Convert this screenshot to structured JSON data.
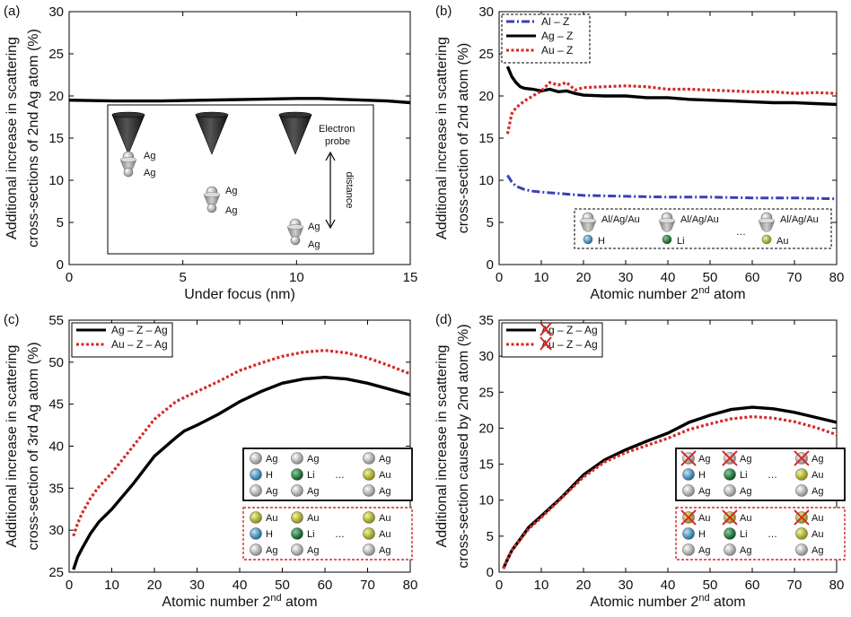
{
  "chart_data": [
    {
      "panel": "(a)",
      "type": "line",
      "xlabel": "Under focus (nm)",
      "ylabel_lines": [
        "Additional increase in scattering",
        "cross-sections of 2nd Ag atom (%)"
      ],
      "xlim": [
        0,
        15
      ],
      "ylim": [
        0,
        30
      ],
      "xticks": [
        0,
        5,
        10,
        15
      ],
      "yticks": [
        0,
        5,
        10,
        15,
        20,
        25,
        30
      ],
      "series": [
        {
          "color": "#000000",
          "dash": "solid",
          "x": [
            0,
            2,
            4,
            6,
            8,
            10,
            11,
            12,
            13,
            14,
            15
          ],
          "y": [
            19.5,
            19.4,
            19.4,
            19.5,
            19.6,
            19.7,
            19.7,
            19.6,
            19.5,
            19.4,
            19.2
          ]
        }
      ],
      "inset": {
        "probe_label": [
          "Electron",
          "probe"
        ],
        "distance_label": "distance",
        "atom_label": "Ag"
      }
    },
    {
      "panel": "(b)",
      "type": "line",
      "xlabel": "Atomic number 2",
      "xlabel_sup": "nd",
      "xlabel_tail": " atom",
      "ylabel_lines": [
        "Additional increase in scattering",
        "cross-section of 2nd atom (%)"
      ],
      "xlim": [
        0,
        80
      ],
      "ylim": [
        0,
        30
      ],
      "xticks": [
        0,
        10,
        20,
        30,
        40,
        50,
        60,
        70,
        80
      ],
      "yticks": [
        0,
        5,
        10,
        15,
        20,
        25,
        30
      ],
      "series": [
        {
          "name": "Al – Z",
          "color": "#3b3fb4",
          "dash": "dashdot",
          "x": [
            2,
            3,
            4,
            6,
            8,
            10,
            15,
            20,
            30,
            40,
            50,
            60,
            70,
            80
          ],
          "y": [
            10.6,
            9.8,
            9.3,
            8.9,
            8.7,
            8.6,
            8.4,
            8.2,
            8.1,
            8.0,
            8.0,
            7.9,
            7.9,
            7.8
          ]
        },
        {
          "name": "Ag – Z",
          "color": "#000000",
          "dash": "solid",
          "x": [
            2,
            3,
            4,
            5,
            6,
            8,
            10,
            12,
            14,
            16,
            18,
            20,
            25,
            30,
            35,
            40,
            45,
            50,
            55,
            60,
            65,
            70,
            75,
            80
          ],
          "y": [
            23.5,
            22.3,
            21.6,
            21.1,
            20.9,
            20.8,
            20.6,
            20.8,
            20.5,
            20.6,
            20.3,
            20.1,
            20.0,
            20.0,
            19.8,
            19.8,
            19.6,
            19.5,
            19.4,
            19.3,
            19.2,
            19.2,
            19.1,
            19.0
          ]
        },
        {
          "name": "Au – Z",
          "color": "#d42a2a",
          "dash": "dotted",
          "x": [
            2,
            3,
            4,
            5,
            6,
            8,
            10,
            12,
            14,
            16,
            18,
            20,
            25,
            30,
            35,
            40,
            45,
            50,
            55,
            60,
            65,
            70,
            75,
            80
          ],
          "y": [
            15.5,
            17.9,
            18.6,
            19.0,
            19.4,
            20.0,
            20.6,
            21.6,
            21.3,
            21.6,
            20.7,
            21.0,
            21.1,
            21.2,
            21.1,
            20.8,
            20.8,
            20.7,
            20.6,
            20.5,
            20.5,
            20.3,
            20.4,
            20.3
          ]
        }
      ],
      "inset": {
        "top_label": "Al/Ag/Au",
        "bottom_labels": [
          "H",
          "Li",
          "Au"
        ],
        "ellipsis": "…"
      }
    },
    {
      "panel": "(c)",
      "type": "line",
      "xlabel": "Atomic number 2",
      "xlabel_sup": "nd",
      "xlabel_tail": " atom",
      "ylabel_lines": [
        "Additional increase in scattering",
        "cross-section of 3rd Ag atom (%)"
      ],
      "xlim": [
        0,
        80
      ],
      "ylim": [
        25,
        55
      ],
      "xticks": [
        0,
        10,
        20,
        30,
        40,
        50,
        60,
        70,
        80
      ],
      "yticks": [
        25,
        30,
        35,
        40,
        45,
        50,
        55
      ],
      "series": [
        {
          "name": "Ag – Z – Ag",
          "color": "#000000",
          "dash": "solid",
          "x": [
            1,
            2,
            3,
            5,
            7,
            10,
            15,
            20,
            25,
            27,
            30,
            35,
            40,
            45,
            50,
            55,
            60,
            65,
            70,
            75,
            80
          ],
          "y": [
            25.3,
            26.8,
            27.8,
            29.6,
            31.0,
            32.5,
            35.5,
            38.8,
            41.0,
            41.8,
            42.5,
            43.8,
            45.3,
            46.5,
            47.5,
            48.0,
            48.2,
            48.0,
            47.5,
            46.8,
            46.1
          ]
        },
        {
          "name": "Au – Z – Ag",
          "color": "#d42a2a",
          "dash": "dotted",
          "x": [
            1,
            2,
            3,
            5,
            7,
            10,
            15,
            20,
            25,
            27,
            30,
            35,
            40,
            45,
            50,
            55,
            60,
            65,
            70,
            75,
            80
          ],
          "y": [
            29.3,
            30.8,
            32.0,
            33.8,
            35.2,
            36.8,
            40.0,
            43.2,
            45.3,
            45.8,
            46.5,
            47.7,
            49.0,
            49.9,
            50.7,
            51.2,
            51.4,
            51.1,
            50.5,
            49.6,
            48.6
          ]
        }
      ],
      "legend_table": {
        "rows_black": [
          [
            "Ag",
            "Ag",
            "Ag"
          ],
          [
            "H",
            "Li",
            "Au"
          ],
          [
            "Ag",
            "Ag",
            "Ag"
          ]
        ],
        "rows_red": [
          [
            "Au",
            "Au",
            "Au"
          ],
          [
            "H",
            "Li",
            "Au"
          ],
          [
            "Ag",
            "Ag",
            "Ag"
          ]
        ],
        "ellipsis": "…"
      }
    },
    {
      "panel": "(d)",
      "type": "line",
      "xlabel": "Atomic number 2",
      "xlabel_sup": "nd",
      "xlabel_tail": " atom",
      "ylabel_lines": [
        "Additional increase in scattering",
        "cross-section caused by 2nd atom (%)"
      ],
      "xlim": [
        0,
        80
      ],
      "ylim": [
        0,
        35
      ],
      "xticks": [
        0,
        10,
        20,
        30,
        40,
        50,
        60,
        70,
        80
      ],
      "yticks": [
        0,
        5,
        10,
        15,
        20,
        25,
        30,
        35
      ],
      "series": [
        {
          "name": "Ag – Z – Ag",
          "color": "#000000",
          "dash": "solid",
          "x": [
            1,
            2,
            3,
            5,
            7,
            10,
            15,
            20,
            25,
            30,
            35,
            40,
            45,
            50,
            55,
            60,
            65,
            70,
            75,
            80
          ],
          "y": [
            0.5,
            1.8,
            3.0,
            4.6,
            6.2,
            7.8,
            10.5,
            13.5,
            15.6,
            17.0,
            18.2,
            19.3,
            20.8,
            21.8,
            22.6,
            22.9,
            22.7,
            22.2,
            21.5,
            20.8
          ]
        },
        {
          "name": "Au – Z – Ag",
          "color": "#d42a2a",
          "dash": "dotted",
          "x": [
            1,
            2,
            3,
            5,
            7,
            10,
            15,
            20,
            25,
            30,
            35,
            40,
            45,
            50,
            55,
            60,
            65,
            70,
            75,
            80
          ],
          "y": [
            0.5,
            1.8,
            3.0,
            4.5,
            6.0,
            7.6,
            10.4,
            13.2,
            15.3,
            16.6,
            17.6,
            18.6,
            19.8,
            20.6,
            21.3,
            21.6,
            21.4,
            20.9,
            20.1,
            19.1
          ]
        }
      ],
      "legend_table": {
        "rows_black": [
          [
            "Ag",
            "Ag",
            "Ag"
          ],
          [
            "H",
            "Li",
            "Au"
          ],
          [
            "Ag",
            "Ag",
            "Ag"
          ]
        ],
        "rows_red": [
          [
            "Au",
            "Au",
            "Au"
          ],
          [
            "H",
            "Li",
            "Au"
          ],
          [
            "Ag",
            "Ag",
            "Ag"
          ]
        ],
        "ellipsis": "…"
      }
    }
  ],
  "colors": {
    "ag_atom": "#bdbdbd",
    "au_atom": "#b8b81a",
    "h_atom": "#3a8fc0",
    "li_atom": "#1b7a3a"
  }
}
